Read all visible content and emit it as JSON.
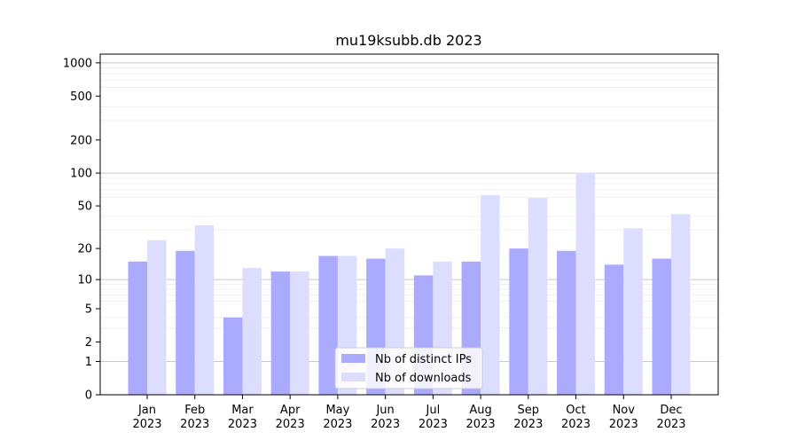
{
  "chart_data": {
    "type": "bar",
    "title": "mu19ksubb.db 2023",
    "xlabel": "",
    "ylabel": "",
    "yscale": "log(1+y)",
    "ylim": [
      0,
      1200
    ],
    "grid": "horizontal",
    "legend_position": "bottom-center",
    "categories": [
      [
        "Jan",
        "2023"
      ],
      [
        "Feb",
        "2023"
      ],
      [
        "Mar",
        "2023"
      ],
      [
        "Apr",
        "2023"
      ],
      [
        "May",
        "2023"
      ],
      [
        "Jun",
        "2023"
      ],
      [
        "Jul",
        "2023"
      ],
      [
        "Aug",
        "2023"
      ],
      [
        "Sep",
        "2023"
      ],
      [
        "Oct",
        "2023"
      ],
      [
        "Nov",
        "2023"
      ],
      [
        "Dec",
        "2023"
      ]
    ],
    "yticks": [
      "0",
      "1",
      "2",
      "5",
      "10",
      "20",
      "50",
      "100",
      "200",
      "500",
      "1000"
    ],
    "series": [
      {
        "name": "Nb of distinct IPs",
        "color": "#aaaaff",
        "values": [
          15,
          19,
          4,
          12,
          17,
          16,
          11,
          15,
          20,
          19,
          14,
          16
        ]
      },
      {
        "name": "Nb of downloads",
        "color": "#ddddff",
        "values": [
          24,
          33,
          13,
          12,
          17,
          20,
          15,
          63,
          59,
          101,
          31,
          42
        ]
      }
    ]
  }
}
